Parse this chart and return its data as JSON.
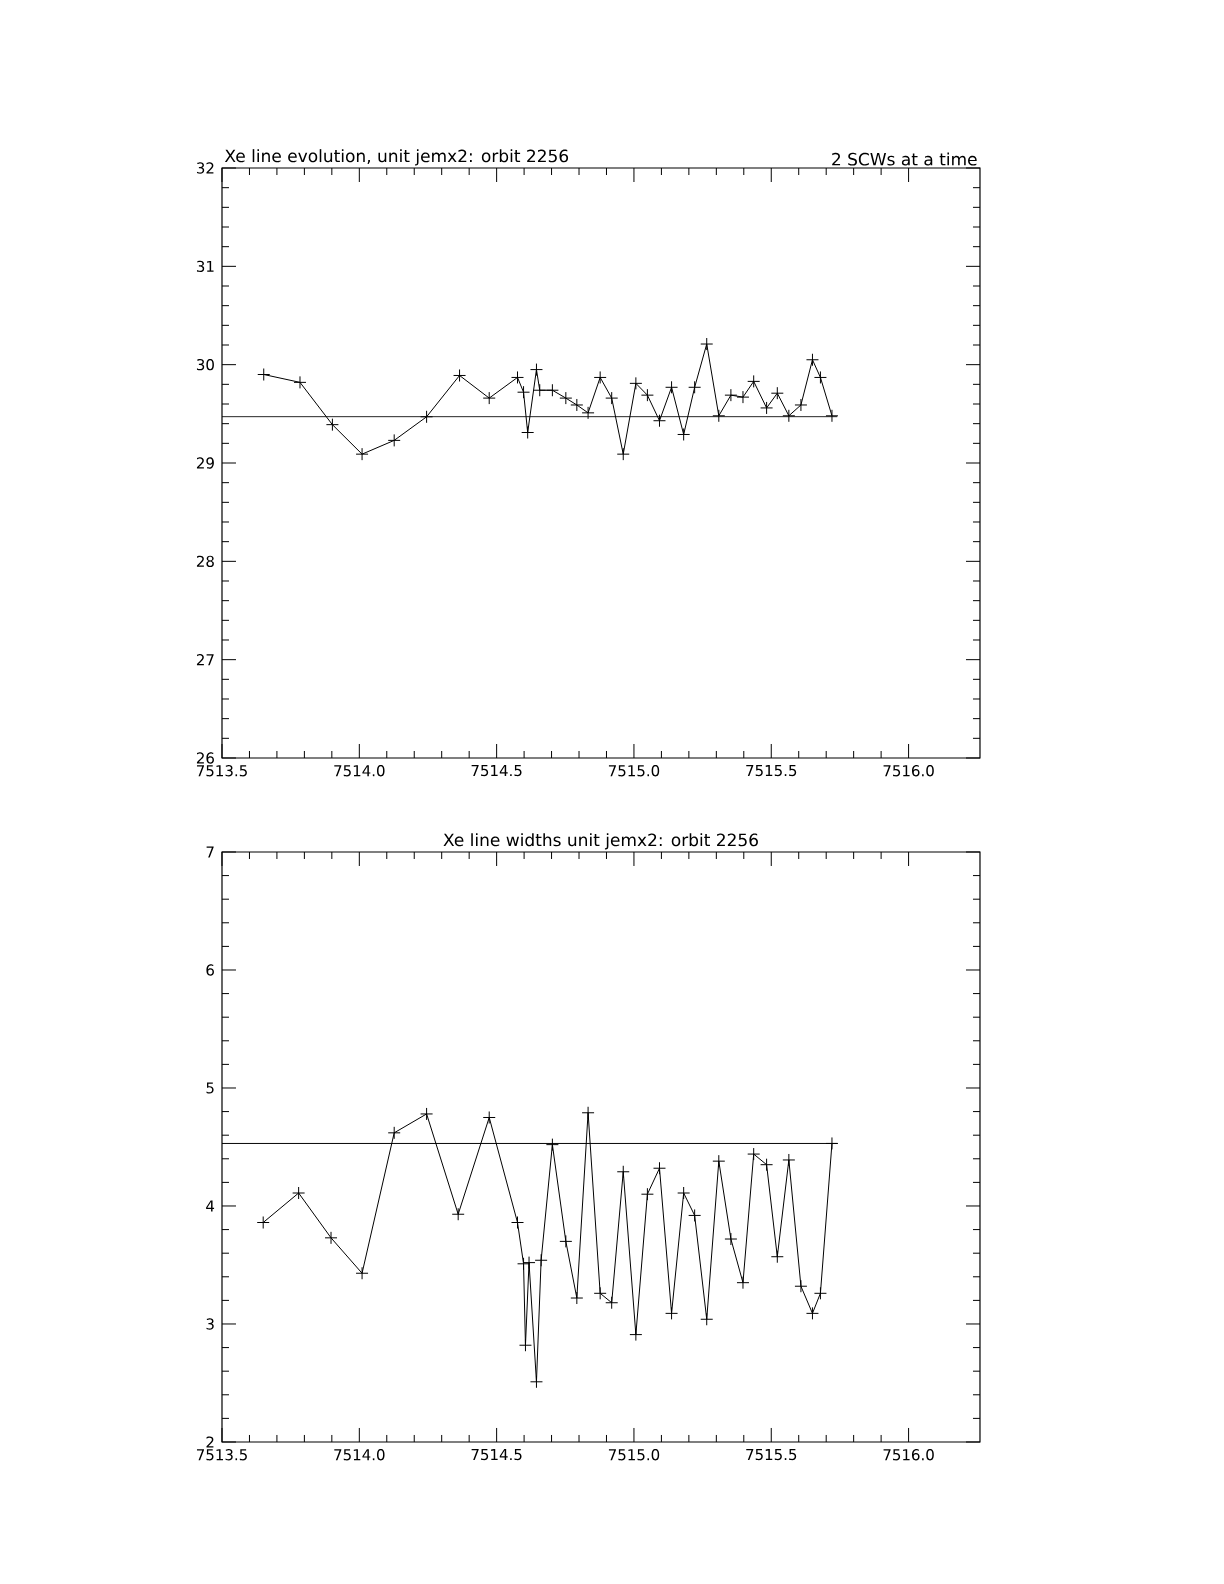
{
  "chart_data": [
    {
      "type": "line",
      "title": "Xe line evolution, unit jemx2: orbit 2256",
      "subtitle": "2 SCWs at a time",
      "xlim": [
        7513.5,
        7516.26
      ],
      "ylim": [
        26,
        32
      ],
      "xticks": [
        {
          "value": 7513.5,
          "label": "7513.5"
        },
        {
          "value": 7514,
          "label": "7514.0"
        },
        {
          "value": 7514.5,
          "label": "7514.5"
        },
        {
          "value": 7515,
          "label": "7515.0"
        },
        {
          "value": 7515.5,
          "label": "7515.5"
        },
        {
          "value": 7516,
          "label": "7516.0"
        }
      ],
      "yticks": [
        26,
        27,
        28,
        29,
        30,
        31,
        32
      ],
      "marker": "cross",
      "line_style": "solid",
      "grid": false,
      "legend": false,
      "series": [
        {
          "color": "#000000",
          "x": [
            7513.652,
            7513.784,
            7513.902,
            7514.01,
            7514.127,
            7514.245,
            7514.365,
            7514.473,
            7514.576,
            7514.598,
            7514.613,
            7514.645,
            7514.657,
            7514.703,
            7514.752,
            7514.792,
            7514.833,
            7514.877,
            7514.919,
            7514.961,
            7515.007,
            7515.049,
            7515.093,
            7515.137,
            7515.181,
            7515.221,
            7515.265,
            7515.309,
            7515.353,
            7515.397,
            7515.436,
            7515.483,
            7515.522,
            7515.564,
            7515.608,
            7515.65,
            7515.679,
            7515.721
          ],
          "values": [
            29.9,
            29.82,
            29.39,
            29.09,
            29.23,
            29.47,
            29.89,
            29.66,
            29.87,
            29.72,
            29.31,
            29.95,
            29.74,
            29.74,
            29.66,
            29.59,
            29.51,
            29.87,
            29.66,
            29.09,
            29.81,
            29.69,
            29.43,
            29.77,
            29.29,
            29.77,
            30.21,
            29.48,
            29.69,
            29.67,
            29.83,
            29.56,
            29.71,
            29.48,
            29.59,
            30.05,
            29.87,
            29.48
          ]
        },
        {
          "color": "#000000",
          "marker": "none",
          "x": [
            7513.5,
            7515.74
          ],
          "values": [
            29.47,
            29.47
          ]
        }
      ]
    },
    {
      "type": "line",
      "title": "Xe line widths unit jemx2: orbit 2256",
      "xlim": [
        7513.5,
        7516.26
      ],
      "ylim": [
        2,
        7
      ],
      "xticks": [
        {
          "value": 7513.5,
          "label": "7513.5"
        },
        {
          "value": 7514,
          "label": "7514.0"
        },
        {
          "value": 7514.5,
          "label": "7514.5"
        },
        {
          "value": 7515,
          "label": "7515.0"
        },
        {
          "value": 7515.5,
          "label": "7515.5"
        },
        {
          "value": 7516,
          "label": "7516.0"
        }
      ],
      "yticks": [
        2,
        3,
        4,
        5,
        6,
        7
      ],
      "marker": "cross",
      "line_style": "solid",
      "grid": false,
      "legend": false,
      "series": [
        {
          "color": "#000000",
          "x": [
            7513.65,
            7513.779,
            7513.897,
            7514.01,
            7514.127,
            7514.245,
            7514.36,
            7514.473,
            7514.576,
            7514.598,
            7514.605,
            7514.618,
            7514.645,
            7514.662,
            7514.703,
            7514.752,
            7514.792,
            7514.833,
            7514.877,
            7514.919,
            7514.961,
            7515.007,
            7515.049,
            7515.093,
            7515.137,
            7515.181,
            7515.221,
            7515.265,
            7515.309,
            7515.353,
            7515.397,
            7515.436,
            7515.483,
            7515.522,
            7515.564,
            7515.608,
            7515.65,
            7515.679,
            7515.721
          ],
          "values": [
            3.86,
            4.11,
            3.73,
            3.43,
            4.62,
            4.78,
            3.93,
            4.75,
            3.86,
            3.51,
            2.82,
            3.52,
            2.51,
            3.54,
            4.52,
            3.7,
            3.22,
            4.79,
            3.26,
            3.18,
            4.29,
            2.91,
            4.1,
            4.32,
            3.09,
            4.11,
            3.92,
            3.04,
            4.38,
            3.72,
            3.35,
            4.44,
            4.35,
            3.57,
            4.39,
            3.32,
            3.09,
            3.26,
            4.53
          ]
        },
        {
          "color": "#000000",
          "marker": "none",
          "x": [
            7513.5,
            7515.74
          ],
          "values": [
            4.53,
            4.53
          ]
        }
      ]
    }
  ]
}
